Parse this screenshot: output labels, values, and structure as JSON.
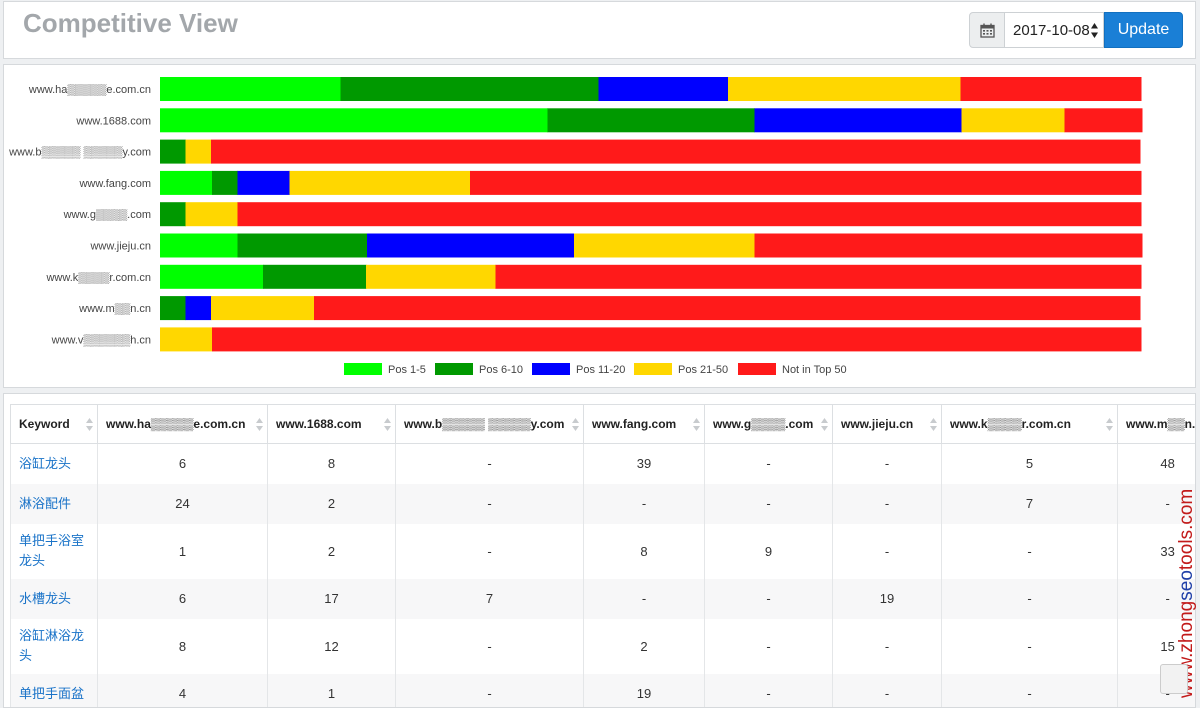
{
  "header": {
    "title": "Competitive View",
    "date_value": "2017-10-08",
    "update_label": "Update"
  },
  "chart_data": {
    "type": "bar",
    "orientation": "horizontal",
    "stacked": true,
    "normalized": true,
    "categories": [
      "www.ha▒▒▒▒▒e.com.cn",
      "www.1688.com",
      "www.b▒▒▒▒▒ ▒▒▒▒▒y.com",
      "www.fang.com",
      "www.g▒▒▒▒.com",
      "www.jieju.cn",
      "www.k▒▒▒▒r.com.cn",
      "www.m▒▒n.cn",
      "www.v▒▒▒▒▒▒h.cn"
    ],
    "series": [
      {
        "name": "Pos 1-5",
        "color": "#00ff00",
        "values": [
          0.184,
          0.395,
          0,
          0.053,
          0,
          0.079,
          0.105,
          0,
          0
        ]
      },
      {
        "name": "Pos 6-10",
        "color": "#009900",
        "values": [
          0.263,
          0.211,
          0.026,
          0.026,
          0.026,
          0.132,
          0.105,
          0.026,
          0
        ]
      },
      {
        "name": "Pos 11-20",
        "color": "#0000ff",
        "values": [
          0.132,
          0.211,
          0,
          0.053,
          0,
          0.211,
          0,
          0.026,
          0
        ]
      },
      {
        "name": "Pos 21-50",
        "color": "#ffd700",
        "values": [
          0.237,
          0.105,
          0.026,
          0.184,
          0.053,
          0.184,
          0.132,
          0.105,
          0.053
        ]
      },
      {
        "name": "Not in Top 50",
        "color": "#ff1a1a",
        "values": [
          0.184,
          0.079,
          0.947,
          0.684,
          0.921,
          0.395,
          0.658,
          0.842,
          0.947
        ]
      }
    ],
    "legend_position": "bottom",
    "xlim": [
      0,
      1
    ]
  },
  "table": {
    "headers": [
      "Keyword",
      "www.ha▒▒▒▒▒e.com.cn",
      "www.1688.com",
      "www.b▒▒▒▒▒ ▒▒▒▒▒y.com",
      "www.fang.com",
      "www.g▒▒▒▒.com",
      "www.jieju.cn",
      "www.k▒▒▒▒r.com.cn",
      "www.m▒▒n.cn"
    ],
    "rows": [
      [
        "浴缸龙头",
        "6",
        "8",
        "-",
        "39",
        "-",
        "-",
        "5",
        "48"
      ],
      [
        "淋浴配件",
        "24",
        "2",
        "-",
        "-",
        "-",
        "-",
        "7",
        "-"
      ],
      [
        "单把手浴室龙头",
        "1",
        "2",
        "-",
        "8",
        "9",
        "-",
        "-",
        "33"
      ],
      [
        "水槽龙头",
        "6",
        "17",
        "7",
        "-",
        "-",
        "19",
        "-",
        "-"
      ],
      [
        "浴缸淋浴龙头",
        "8",
        "12",
        "-",
        "2",
        "-",
        "-",
        "-",
        "15"
      ],
      [
        "单把手面盆",
        "4",
        "1",
        "-",
        "19",
        "-",
        "-",
        "-",
        "-"
      ]
    ]
  },
  "watermark": "www.zhongseotools.com"
}
